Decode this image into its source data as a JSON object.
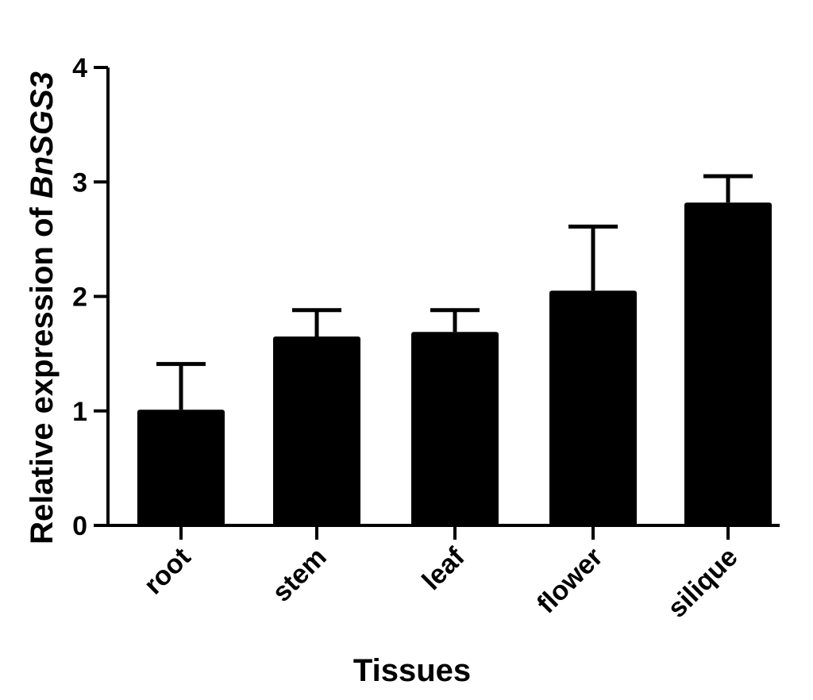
{
  "chart_data": {
    "type": "bar",
    "categories": [
      "root",
      "stem",
      "leaf",
      "flower",
      "silique"
    ],
    "values": [
      1.01,
      1.65,
      1.69,
      2.05,
      2.82
    ],
    "error_upper": [
      1.41,
      1.88,
      1.88,
      2.61,
      3.05
    ],
    "title": "",
    "xlabel": "Tissues",
    "ylabel_prefix": "Relative expression of ",
    "ylabel_gene": "BnSGS3",
    "ylim": [
      0,
      4
    ],
    "yticks": [
      0,
      1,
      2,
      3,
      4
    ],
    "grid": false,
    "legend": "none",
    "bar_color": "#000000"
  }
}
